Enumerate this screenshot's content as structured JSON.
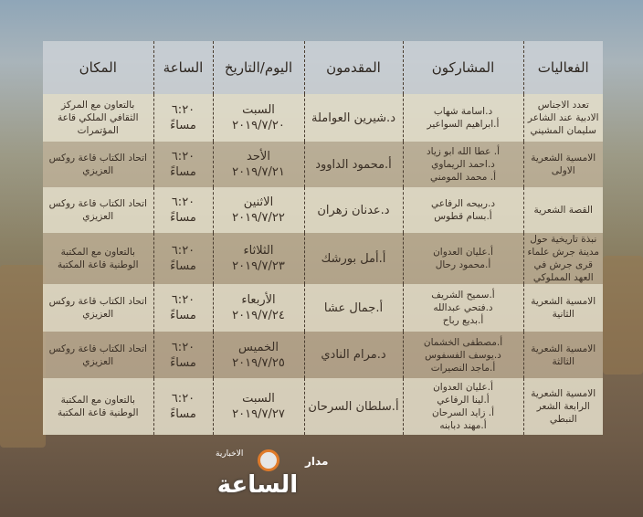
{
  "headers": {
    "events": "الفعاليات",
    "participants": "المشاركون",
    "presenter": "المقدمون",
    "day_date": "اليوم/التاريخ",
    "time": "الساعة",
    "place": "المكان"
  },
  "rows": [
    {
      "event": "تعدد الاجناس الادبية عند الشاعر سليمان المشيني",
      "participants": [
        "د.اسامة شهاب",
        "أ.ابراهيم السواعير"
      ],
      "presenter": "د.شيرين العواملة",
      "day": "السبت",
      "date": "٢٠١٩/٧/٢٠",
      "time": "٦:٢٠",
      "period": "مساءً",
      "place": "بالتعاون مع المركز الثقافي الملكي قاعة المؤتمرات"
    },
    {
      "event": "الامسية الشعرية الاولى",
      "participants": [
        "أ. عطا الله ابو زياد",
        "د.احمد الريماوي",
        "أ. محمد المومني"
      ],
      "presenter": "أ.محمود الداوود",
      "day": "الأحد",
      "date": "٢٠١٩/٧/٢١",
      "time": "٦:٢٠",
      "period": "مساءً",
      "place": "اتحاد الكتاب قاعة روكس العزيزي"
    },
    {
      "event": "القصة الشعرية",
      "participants": [
        "د.ربيحه الرفاعي",
        "أ.بسام قطوس"
      ],
      "presenter": "د.عدنان زهران",
      "day": "الاثنين",
      "date": "٢٠١٩/٧/٢٢",
      "time": "٦:٢٠",
      "period": "مساءً",
      "place": "اتحاد الكتاب قاعة روكس العزيزي"
    },
    {
      "event": "نبذة تاريخية حول مدينة جرش علماء قرى جرش في العهد المملوكي",
      "participants": [
        "أ.عليان العدوان",
        "أ.محمود رحال"
      ],
      "presenter": "أ.أمل بورشك",
      "day": "الثلاثاء",
      "date": "٢٠١٩/٧/٢٣",
      "time": "٦:٢٠",
      "period": "مساءً",
      "place": "بالتعاون مع المكتبة الوطنية قاعة المكتبة"
    },
    {
      "event": "الامسية الشعرية الثانية",
      "participants": [
        "أ.سميح الشريف",
        "د.فتحي عبدالله",
        "أ.بديع رباح"
      ],
      "presenter": "أ.جمال عشا",
      "day": "الأربعاء",
      "date": "٢٠١٩/٧/٢٤",
      "time": "٦:٢٠",
      "period": "مساءً",
      "place": "اتحاد الكتاب قاعة روكس العزيزي"
    },
    {
      "event": "الامسية الشعرية الثالثة",
      "participants": [
        "أ.مصطفى الخشمان",
        "د.يوسف الفسفوس",
        "أ.ماجد النصيرات"
      ],
      "presenter": "د.مرام النادي",
      "day": "الخميس",
      "date": "٢٠١٩/٧/٢٥",
      "time": "٦:٢٠",
      "period": "مساءً",
      "place": "اتحاد الكتاب قاعة روكس العزيزي"
    },
    {
      "event": "الامسية الشعرية الرابعة الشعر النبطي",
      "participants": [
        "أ.عليان العدوان",
        "أ.لينا الرفاعي",
        "أ. زايد السرحان",
        "أ.مهند دبابنه"
      ],
      "presenter": "أ.سلطان السرحان",
      "day": "السبت",
      "date": "٢٠١٩/٧/٢٧",
      "time": "٦:٢٠",
      "period": "مساءً",
      "place": "بالتعاون مع المكتبة الوطنية قاعة المكتبة"
    }
  ],
  "logo": {
    "main": "الساعة",
    "top": "مدار",
    "sub": "الاخبارية"
  }
}
